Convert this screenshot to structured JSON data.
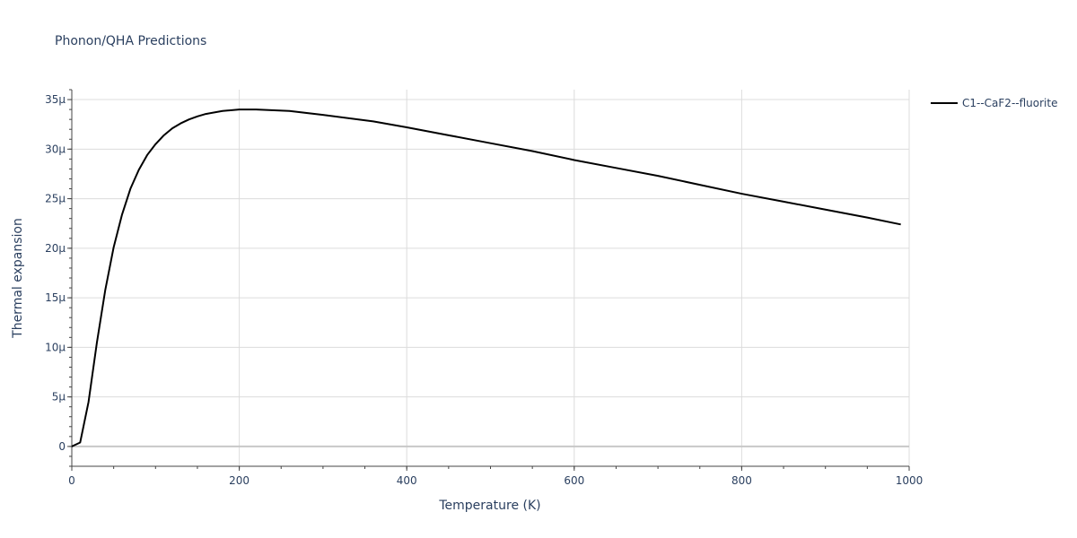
{
  "chart_data": {
    "type": "line",
    "title": "Phonon/QHA Predictions",
    "xlabel": "Temperature (K)",
    "ylabel": "Thermal expansion",
    "xlim": [
      0,
      1000
    ],
    "ylim": [
      -2e-06,
      3.6e-05
    ],
    "x_ticks": [
      0,
      200,
      400,
      600,
      800,
      1000
    ],
    "x_tick_labels": [
      "0",
      "200",
      "400",
      "600",
      "800",
      "1000"
    ],
    "y_ticks": [
      0,
      5e-06,
      1e-05,
      1.5e-05,
      2e-05,
      2.5e-05,
      3e-05,
      3.5e-05
    ],
    "y_tick_labels": [
      "0",
      "5μ",
      "10μ",
      "15μ",
      "20μ",
      "25μ",
      "30μ",
      "35μ"
    ],
    "grid": true,
    "legend_position": "top-right",
    "series": [
      {
        "name": "C1--CaF2--fluorite",
        "color": "#000000",
        "x": [
          0,
          10,
          20,
          30,
          40,
          50,
          60,
          70,
          80,
          90,
          100,
          110,
          120,
          130,
          140,
          150,
          160,
          180,
          200,
          220,
          260,
          300,
          360,
          400,
          450,
          500,
          550,
          600,
          650,
          700,
          750,
          800,
          850,
          900,
          950,
          990
        ],
        "y": [
          0.0,
          4e-07,
          4.5e-06,
          1.05e-05,
          1.58e-05,
          2.01e-05,
          2.34e-05,
          2.6e-05,
          2.79e-05,
          2.94e-05,
          3.05e-05,
          3.14e-05,
          3.21e-05,
          3.26e-05,
          3.3e-05,
          3.33e-05,
          3.355e-05,
          3.385e-05,
          3.4e-05,
          3.4e-05,
          3.385e-05,
          3.345e-05,
          3.28e-05,
          3.22e-05,
          3.14e-05,
          3.06e-05,
          2.98e-05,
          2.89e-05,
          2.81e-05,
          2.73e-05,
          2.64e-05,
          2.55e-05,
          2.47e-05,
          2.39e-05,
          2.31e-05,
          2.24e-05
        ]
      }
    ]
  }
}
